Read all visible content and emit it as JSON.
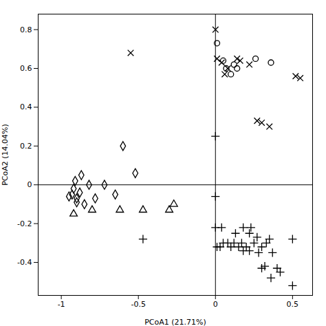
{
  "chart_data": {
    "type": "scatter",
    "xlabel": "PCoA1 (21.71%)",
    "ylabel": "PCoA2 (14.04%)",
    "xlim": [
      -1.15,
      0.63
    ],
    "ylim": [
      -0.57,
      0.88
    ],
    "xticks": [
      -1.0,
      -0.5,
      0.0,
      0.5
    ],
    "yticks": [
      -0.4,
      -0.2,
      0.0,
      0.2,
      0.4,
      0.6,
      0.8
    ],
    "series": [
      {
        "marker": "diamond",
        "color": "black",
        "x": [
          -0.95,
          -0.93,
          -0.92,
          -0.91,
          -0.9,
          -0.9,
          -0.88,
          -0.87,
          -0.85,
          -0.82,
          -0.78,
          -0.72,
          -0.65,
          -0.6,
          -0.52
        ],
        "values": [
          -0.06,
          -0.05,
          -0.02,
          0.02,
          -0.09,
          -0.07,
          -0.04,
          0.05,
          -0.1,
          0.0,
          -0.07,
          0.0,
          -0.05,
          0.2,
          0.06
        ]
      },
      {
        "marker": "triangle",
        "color": "black",
        "x": [
          -0.92,
          -0.8,
          -0.62,
          -0.47,
          -0.3,
          -0.27
        ],
        "values": [
          -0.15,
          -0.13,
          -0.13,
          -0.13,
          -0.13,
          -0.1
        ]
      },
      {
        "marker": "plus",
        "color": "black",
        "x": [
          -0.47,
          0.0,
          0.0,
          0.01,
          0.03,
          0.04,
          0.05,
          0.08,
          0.1,
          0.12,
          0.13,
          0.15,
          0.17,
          0.18,
          0.18,
          0.2,
          0.22,
          0.22,
          0.23,
          0.25,
          0.27,
          0.28,
          0.3,
          0.3,
          0.32,
          0.33,
          0.35,
          0.36,
          0.37,
          0.4,
          0.42,
          0.5,
          0.5,
          0.0
        ],
        "values": [
          -0.28,
          -0.06,
          -0.22,
          -0.32,
          -0.32,
          -0.22,
          -0.3,
          -0.3,
          -0.32,
          -0.3,
          -0.25,
          -0.32,
          -0.3,
          -0.22,
          -0.34,
          -0.32,
          -0.25,
          -0.34,
          -0.22,
          -0.3,
          -0.27,
          -0.35,
          -0.32,
          -0.43,
          -0.42,
          -0.3,
          -0.28,
          -0.48,
          -0.35,
          -0.43,
          -0.45,
          -0.52,
          -0.28,
          0.25
        ]
      },
      {
        "marker": "x",
        "color": "black",
        "x": [
          -0.55,
          0.0,
          0.01,
          0.04,
          0.06,
          0.08,
          0.14,
          0.16,
          0.22,
          0.27,
          0.3,
          0.35,
          0.52,
          0.55
        ],
        "values": [
          0.68,
          0.8,
          0.65,
          0.63,
          0.57,
          0.6,
          0.65,
          0.64,
          0.62,
          0.33,
          0.32,
          0.3,
          0.56,
          0.55
        ]
      },
      {
        "marker": "circle",
        "color": "black",
        "x": [
          0.01,
          0.05,
          0.07,
          0.1,
          0.12,
          0.14,
          0.26,
          0.36
        ],
        "values": [
          0.73,
          0.64,
          0.6,
          0.57,
          0.62,
          0.6,
          0.65,
          0.63
        ]
      }
    ]
  }
}
